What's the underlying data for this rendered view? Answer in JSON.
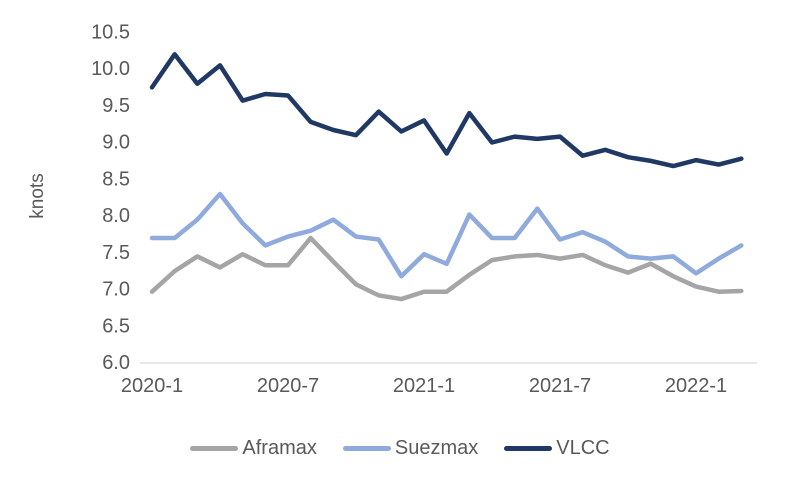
{
  "chart_data": {
    "type": "line",
    "title": "",
    "xlabel": "",
    "ylabel": "knots",
    "ylim": [
      6.0,
      10.5
    ],
    "grid": "off",
    "legend_position": "bottom",
    "axis_line_color": "#D9D9D9",
    "tick_label_color": "#595959",
    "ytick_labels": [
      "6.0",
      "6.5",
      "7.0",
      "7.5",
      "8.0",
      "8.5",
      "9.0",
      "9.5",
      "10.0",
      "10.5"
    ],
    "xtick_labels": [
      "2020-1",
      "2020-7",
      "2021-1",
      "2021-7",
      "2022-1"
    ],
    "categories": [
      "2020-1",
      "2020-2",
      "2020-3",
      "2020-4",
      "2020-5",
      "2020-6",
      "2020-7",
      "2020-8",
      "2020-9",
      "2020-10",
      "2020-11",
      "2020-12",
      "2021-1",
      "2021-2",
      "2021-3",
      "2021-4",
      "2021-5",
      "2021-6",
      "2021-7",
      "2021-8",
      "2021-9",
      "2021-10",
      "2021-11",
      "2021-12",
      "2022-1",
      "2022-2",
      "2022-3"
    ],
    "series": [
      {
        "name": "Aframax",
        "color": "#A5A5A5",
        "values": [
          6.97,
          7.25,
          7.45,
          7.3,
          7.48,
          7.33,
          7.33,
          7.7,
          7.38,
          7.07,
          6.92,
          6.87,
          6.97,
          6.97,
          7.2,
          7.4,
          7.45,
          7.47,
          7.42,
          7.47,
          7.33,
          7.23,
          7.35,
          7.18,
          7.04,
          6.97,
          6.98
        ]
      },
      {
        "name": "Suezmax",
        "color": "#8FAADC",
        "values": [
          7.7,
          7.7,
          7.95,
          8.3,
          7.9,
          7.6,
          7.72,
          7.8,
          7.95,
          7.72,
          7.68,
          7.18,
          7.48,
          7.35,
          8.02,
          7.7,
          7.7,
          8.1,
          7.68,
          7.78,
          7.65,
          7.45,
          7.42,
          7.45,
          7.22,
          7.42,
          7.6
        ]
      },
      {
        "name": "VLCC",
        "color": "#1F3864",
        "values": [
          9.75,
          10.2,
          9.8,
          10.05,
          9.57,
          9.66,
          9.64,
          9.28,
          9.17,
          9.1,
          9.42,
          9.15,
          9.3,
          8.85,
          9.4,
          9.0,
          9.08,
          9.05,
          9.08,
          8.82,
          8.9,
          8.8,
          8.75,
          8.68,
          8.76,
          8.7,
          8.78
        ]
      }
    ]
  }
}
